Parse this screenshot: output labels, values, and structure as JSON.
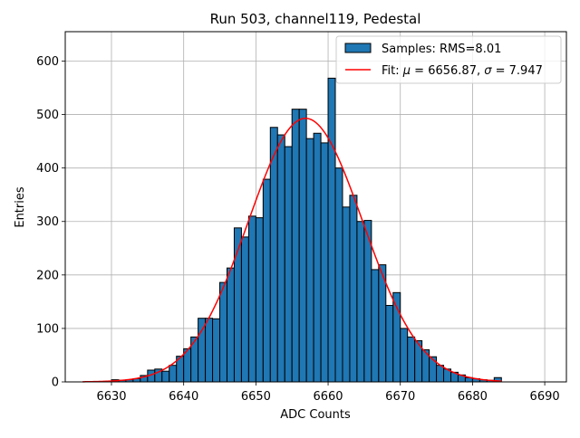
{
  "chart_data": {
    "type": "bar",
    "title": "Run 503, channel119, Pedestal",
    "xlabel": "ADC Counts",
    "ylabel": "Entries",
    "xlim": [
      6623.6,
      6693.0
    ],
    "ylim": [
      0,
      655
    ],
    "xticks": [
      6630,
      6640,
      6650,
      6660,
      6670,
      6680,
      6690
    ],
    "yticks": [
      0,
      100,
      200,
      300,
      400,
      500,
      600
    ],
    "grid": true,
    "legend_position": "top-right",
    "legend": [
      {
        "name": "samples",
        "label": "Samples: RMS=8.01",
        "kind": "patch"
      },
      {
        "name": "fit",
        "label_prefix": "Fit: ",
        "mu_symbol": "μ",
        "mu_text": " = 6656.87, ",
        "sigma_symbol": "σ",
        "sigma_text": " = 7.947",
        "kind": "line"
      }
    ],
    "colors": {
      "bars": "#1f77b4",
      "bar_edge": "#000000",
      "fit": "#ff0000",
      "grid": "#b0b0b0"
    },
    "histogram": {
      "bin_width": 1,
      "bins": [
        {
          "x": 6626,
          "count": 0
        },
        {
          "x": 6627,
          "count": 0
        },
        {
          "x": 6628,
          "count": 0
        },
        {
          "x": 6629,
          "count": 1
        },
        {
          "x": 6630,
          "count": 4
        },
        {
          "x": 6631,
          "count": 3
        },
        {
          "x": 6632,
          "count": 4
        },
        {
          "x": 6633,
          "count": 6
        },
        {
          "x": 6634,
          "count": 12
        },
        {
          "x": 6635,
          "count": 22
        },
        {
          "x": 6636,
          "count": 24
        },
        {
          "x": 6637,
          "count": 20
        },
        {
          "x": 6638,
          "count": 31
        },
        {
          "x": 6639,
          "count": 48
        },
        {
          "x": 6640,
          "count": 62
        },
        {
          "x": 6641,
          "count": 84
        },
        {
          "x": 6642,
          "count": 119
        },
        {
          "x": 6643,
          "count": 119
        },
        {
          "x": 6644,
          "count": 118
        },
        {
          "x": 6645,
          "count": 186
        },
        {
          "x": 6646,
          "count": 213
        },
        {
          "x": 6647,
          "count": 288
        },
        {
          "x": 6648,
          "count": 271
        },
        {
          "x": 6649,
          "count": 310
        },
        {
          "x": 6650,
          "count": 307
        },
        {
          "x": 6651,
          "count": 379
        },
        {
          "x": 6652,
          "count": 476
        },
        {
          "x": 6653,
          "count": 462
        },
        {
          "x": 6654,
          "count": 440
        },
        {
          "x": 6655,
          "count": 510
        },
        {
          "x": 6656,
          "count": 510
        },
        {
          "x": 6657,
          "count": 455
        },
        {
          "x": 6658,
          "count": 465
        },
        {
          "x": 6659,
          "count": 447
        },
        {
          "x": 6660,
          "count": 568
        },
        {
          "x": 6661,
          "count": 400
        },
        {
          "x": 6662,
          "count": 327
        },
        {
          "x": 6663,
          "count": 349
        },
        {
          "x": 6664,
          "count": 300
        },
        {
          "x": 6665,
          "count": 302
        },
        {
          "x": 6666,
          "count": 210
        },
        {
          "x": 6667,
          "count": 219
        },
        {
          "x": 6668,
          "count": 143
        },
        {
          "x": 6669,
          "count": 167
        },
        {
          "x": 6670,
          "count": 100
        },
        {
          "x": 6671,
          "count": 84
        },
        {
          "x": 6672,
          "count": 77
        },
        {
          "x": 6673,
          "count": 60
        },
        {
          "x": 6674,
          "count": 47
        },
        {
          "x": 6675,
          "count": 31
        },
        {
          "x": 6676,
          "count": 24
        },
        {
          "x": 6677,
          "count": 18
        },
        {
          "x": 6678,
          "count": 13
        },
        {
          "x": 6679,
          "count": 8
        },
        {
          "x": 6680,
          "count": 6
        },
        {
          "x": 6681,
          "count": 4
        },
        {
          "x": 6682,
          "count": 3
        },
        {
          "x": 6683,
          "count": 8
        }
      ]
    },
    "fit": {
      "mu": 6656.87,
      "sigma": 7.947,
      "amplitude": 493,
      "x_range": [
        6626,
        6684
      ]
    }
  }
}
